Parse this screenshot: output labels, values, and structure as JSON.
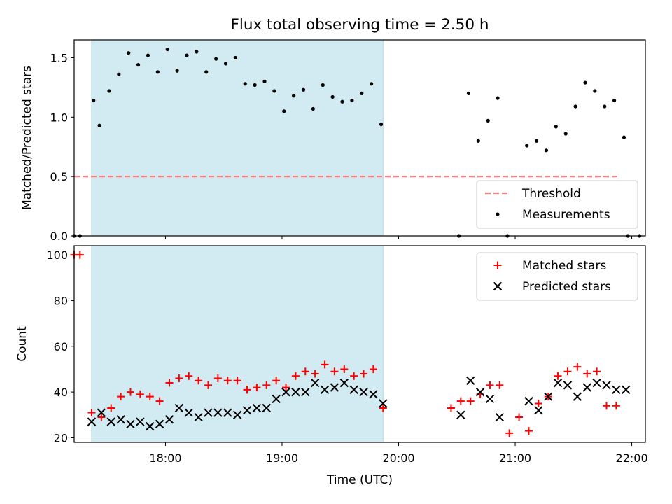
{
  "figure": {
    "title": "Flux total observing time = 2.50 h"
  },
  "colors": {
    "shade": "#add8e6",
    "threshold": "#ff7f7f",
    "measurement": "#000000",
    "matched": "#ff0000",
    "predicted": "#000000"
  },
  "chart_data": [
    {
      "type": "scatter",
      "ylabel": "Matched/Predicted stars",
      "ylim": [
        0,
        1.65
      ],
      "xlim": [
        "17:13",
        "22:07"
      ],
      "yticks": [
        "0.0",
        "0.5",
        "1.0",
        "1.5"
      ],
      "ytick_values": [
        0,
        0.5,
        1.0,
        1.5
      ],
      "shaded_interval": [
        "17:22",
        "19:52"
      ],
      "legend_position": "lower-right",
      "threshold": {
        "label": "Threshold",
        "value": 0.5,
        "x_range": [
          "17:13",
          "21:53"
        ]
      },
      "series": [
        {
          "name": "Measurements",
          "x": [
            "17:13",
            "17:16",
            "17:23",
            "17:26",
            "17:31",
            "17:36",
            "17:41",
            "17:46",
            "17:51",
            "17:56",
            "18:01",
            "18:06",
            "18:11",
            "18:16",
            "18:21",
            "18:26",
            "18:31",
            "18:36",
            "18:41",
            "18:46",
            "18:51",
            "18:56",
            "19:01",
            "19:06",
            "19:11",
            "19:16",
            "19:21",
            "19:26",
            "19:31",
            "19:36",
            "19:41",
            "19:46",
            "19:51",
            "20:31",
            "20:36",
            "20:41",
            "20:46",
            "20:51",
            "20:56",
            "21:06",
            "21:11",
            "21:16",
            "21:21",
            "21:26",
            "21:31",
            "21:36",
            "21:41",
            "21:46",
            "21:51",
            "21:56",
            "21:58",
            "22:04"
          ],
          "y": [
            0,
            0,
            1.14,
            0.93,
            1.22,
            1.36,
            1.54,
            1.44,
            1.52,
            1.38,
            1.57,
            1.39,
            1.52,
            1.55,
            1.38,
            1.49,
            1.45,
            1.5,
            1.28,
            1.27,
            1.3,
            1.22,
            1.05,
            1.18,
            1.23,
            1.07,
            1.27,
            1.17,
            1.13,
            1.14,
            1.2,
            1.28,
            0.94,
            0,
            1.2,
            0.8,
            0.97,
            1.16,
            0,
            0.76,
            0.8,
            0.72,
            0.92,
            0.86,
            1.09,
            1.29,
            1.22,
            1.09,
            1.14,
            0.83,
            0,
            0
          ]
        }
      ]
    },
    {
      "type": "scatter",
      "xlabel": "Time (UTC)",
      "ylabel": "Count",
      "ylim": [
        18,
        104
      ],
      "xlim": [
        "17:13",
        "22:07"
      ],
      "yticks": [
        "20",
        "40",
        "60",
        "80",
        "100"
      ],
      "ytick_values": [
        20,
        40,
        60,
        80,
        100
      ],
      "xticks": [
        "18:00",
        "19:00",
        "20:00",
        "21:00",
        "22:00"
      ],
      "shaded_interval": [
        "17:22",
        "19:52"
      ],
      "legend_position": "upper-right",
      "series": [
        {
          "name": "Matched stars",
          "marker": "plus",
          "x": [
            "17:13",
            "17:16",
            "17:22",
            "17:27",
            "17:32",
            "17:37",
            "17:42",
            "17:47",
            "17:52",
            "17:57",
            "18:02",
            "18:07",
            "18:12",
            "18:17",
            "18:22",
            "18:27",
            "18:32",
            "18:37",
            "18:42",
            "18:47",
            "18:52",
            "18:57",
            "19:02",
            "19:07",
            "19:12",
            "19:17",
            "19:22",
            "19:27",
            "19:32",
            "19:37",
            "19:42",
            "19:47",
            "19:52",
            "20:27",
            "20:32",
            "20:37",
            "20:42",
            "20:47",
            "20:52",
            "20:57",
            "21:02",
            "21:07",
            "21:12",
            "21:17",
            "21:22",
            "21:27",
            "21:32",
            "21:37",
            "21:42",
            "21:47",
            "21:52"
          ],
          "y": [
            100,
            100,
            31,
            29,
            33,
            38,
            40,
            39,
            38,
            36,
            44,
            46,
            47,
            45,
            43,
            46,
            45,
            45,
            41,
            42,
            43,
            45,
            42,
            47,
            49,
            48,
            52,
            49,
            50,
            47,
            48,
            50,
            33,
            33,
            36,
            36,
            39,
            43,
            43,
            22,
            29,
            23,
            35,
            38,
            47,
            49,
            51,
            48,
            49,
            34,
            34
          ]
        },
        {
          "name": "Predicted stars",
          "marker": "x",
          "x": [
            "17:22",
            "17:27",
            "17:32",
            "17:37",
            "17:42",
            "17:47",
            "17:52",
            "17:57",
            "18:02",
            "18:07",
            "18:12",
            "18:17",
            "18:22",
            "18:27",
            "18:32",
            "18:37",
            "18:42",
            "18:47",
            "18:52",
            "18:57",
            "19:02",
            "19:07",
            "19:12",
            "19:17",
            "19:22",
            "19:27",
            "19:32",
            "19:37",
            "19:42",
            "19:47",
            "19:52",
            "20:32",
            "20:37",
            "20:42",
            "20:47",
            "20:52",
            "21:07",
            "21:12",
            "21:17",
            "21:22",
            "21:27",
            "21:32",
            "21:37",
            "21:42",
            "21:47",
            "21:52",
            "21:57"
          ],
          "y": [
            27,
            31,
            27,
            28,
            26,
            27,
            25,
            26,
            28,
            33,
            31,
            29,
            31,
            31,
            31,
            30,
            32,
            33,
            33,
            37,
            40,
            40,
            40,
            44,
            41,
            42,
            44,
            41,
            40,
            39,
            35,
            30,
            45,
            40,
            37,
            29,
            36,
            32,
            38,
            44,
            43,
            38,
            42,
            44,
            43,
            41,
            41
          ]
        }
      ]
    }
  ]
}
